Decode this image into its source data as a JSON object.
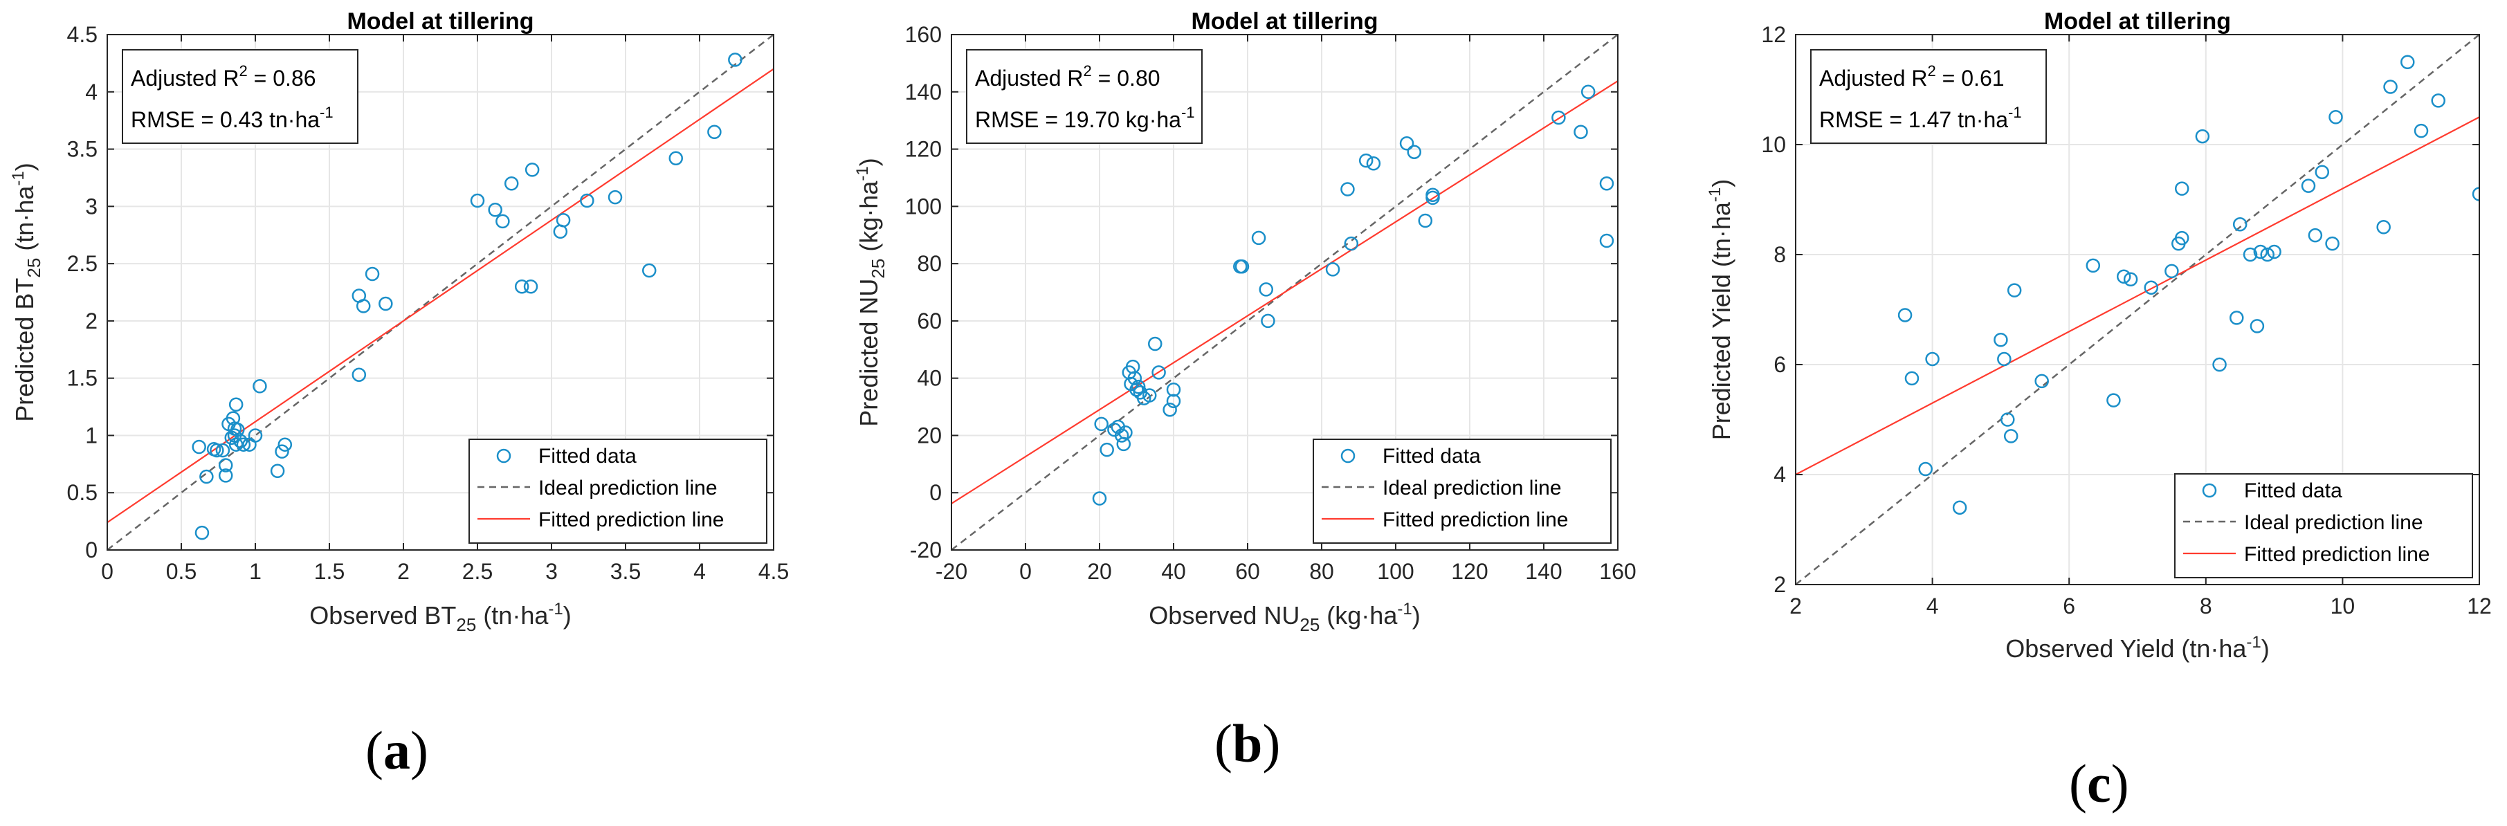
{
  "chart_data": [
    {
      "type": "scatter",
      "title": "Model at tillering",
      "xlabel": "Observed BT",
      "xlabel_sub": "25",
      "xlabel_unit": "(tn·ha",
      "xlabel_exp": "-1",
      "xlabel_close": ")",
      "ylabel": "Predicted BT",
      "ylabel_sub": "25",
      "ylabel_unit": "(tn·ha",
      "ylabel_exp": "-1",
      "ylabel_close": ")",
      "xlim": [
        0,
        4.5
      ],
      "ylim": [
        0,
        4.5
      ],
      "xticks": [
        0,
        0.5,
        1,
        1.5,
        2,
        2.5,
        3,
        3.5,
        4,
        4.5
      ],
      "yticks": [
        0,
        0.5,
        1,
        1.5,
        2,
        2.5,
        3,
        3.5,
        4,
        4.5
      ],
      "stats": {
        "r2_label": "Adjusted R",
        "r2_exp": "2",
        "r2_value": " = 0.86",
        "rmse_label": "RMSE = 0.43 tn·ha",
        "rmse_exp": "-1"
      },
      "legend": [
        "Fitted data",
        "Ideal prediction line",
        "Fitted prediction line"
      ],
      "fit": {
        "slope": 0.88,
        "intercept": 0.24
      },
      "points": [
        [
          0.62,
          0.9
        ],
        [
          0.64,
          0.15
        ],
        [
          0.67,
          0.64
        ],
        [
          0.72,
          0.88
        ],
        [
          0.74,
          0.87
        ],
        [
          0.78,
          0.87
        ],
        [
          0.8,
          0.74
        ],
        [
          0.8,
          0.65
        ],
        [
          0.82,
          1.1
        ],
        [
          0.84,
          0.98
        ],
        [
          0.85,
          1.15
        ],
        [
          0.86,
          1.06
        ],
        [
          0.86,
          1.0
        ],
        [
          0.87,
          1.27
        ],
        [
          0.87,
          0.92
        ],
        [
          0.88,
          1.05
        ],
        [
          0.9,
          0.95
        ],
        [
          0.92,
          0.92
        ],
        [
          0.96,
          0.92
        ],
        [
          1.0,
          1.0
        ],
        [
          1.03,
          1.43
        ],
        [
          1.15,
          0.69
        ],
        [
          1.18,
          0.86
        ],
        [
          1.2,
          0.92
        ],
        [
          1.7,
          1.53
        ],
        [
          1.7,
          2.22
        ],
        [
          1.73,
          2.13
        ],
        [
          1.79,
          2.41
        ],
        [
          1.88,
          2.15
        ],
        [
          2.5,
          3.05
        ],
        [
          2.62,
          2.97
        ],
        [
          2.67,
          2.87
        ],
        [
          2.73,
          3.2
        ],
        [
          2.8,
          2.3
        ],
        [
          2.86,
          2.3
        ],
        [
          2.87,
          3.32
        ],
        [
          3.06,
          2.78
        ],
        [
          3.08,
          2.88
        ],
        [
          3.24,
          3.05
        ],
        [
          3.43,
          3.08
        ],
        [
          3.66,
          2.44
        ],
        [
          3.84,
          3.42
        ],
        [
          4.1,
          3.65
        ],
        [
          4.24,
          4.28
        ]
      ]
    },
    {
      "type": "scatter",
      "title": "Model at tillering",
      "xlabel": "Observed NU",
      "xlabel_sub": "25",
      "xlabel_unit": "(kg·ha",
      "xlabel_exp": "-1",
      "xlabel_close": ")",
      "ylabel": "Predicted NU",
      "ylabel_sub": "25",
      "ylabel_unit": "(kg·ha",
      "ylabel_exp": "-1",
      "ylabel_close": ")",
      "xlim": [
        -20,
        160
      ],
      "ylim": [
        -20,
        160
      ],
      "xticks": [
        -20,
        0,
        20,
        40,
        60,
        80,
        100,
        120,
        140,
        160
      ],
      "yticks": [
        -20,
        0,
        20,
        40,
        60,
        80,
        100,
        120,
        140,
        160
      ],
      "stats": {
        "r2_label": "Adjusted R",
        "r2_exp": "2",
        "r2_value": " = 0.80",
        "rmse_label": "RMSE = 19.70 kg·ha",
        "rmse_exp": "-1"
      },
      "legend": [
        "Fitted data",
        "Ideal prediction line",
        "Fitted prediction line"
      ],
      "fit": {
        "slope": 0.82,
        "intercept": 12.6
      },
      "points": [
        [
          20,
          -2
        ],
        [
          20.5,
          24
        ],
        [
          22,
          15
        ],
        [
          24,
          22
        ],
        [
          25,
          23
        ],
        [
          26,
          20
        ],
        [
          26.5,
          17
        ],
        [
          27,
          21
        ],
        [
          28,
          42
        ],
        [
          28.5,
          38
        ],
        [
          29,
          44
        ],
        [
          29.5,
          40
        ],
        [
          30,
          36
        ],
        [
          30.5,
          37
        ],
        [
          31,
          35
        ],
        [
          32,
          33
        ],
        [
          33.5,
          34
        ],
        [
          35,
          52
        ],
        [
          36,
          42
        ],
        [
          39,
          29
        ],
        [
          40,
          32
        ],
        [
          40,
          36
        ],
        [
          58,
          79
        ],
        [
          58.5,
          79
        ],
        [
          63,
          89
        ],
        [
          65,
          71
        ],
        [
          65.5,
          60
        ],
        [
          83,
          78
        ],
        [
          87,
          106
        ],
        [
          88,
          87
        ],
        [
          92,
          116
        ],
        [
          94,
          115
        ],
        [
          103,
          122
        ],
        [
          105,
          119
        ],
        [
          108,
          95
        ],
        [
          110,
          103
        ],
        [
          110,
          104
        ],
        [
          144,
          131
        ],
        [
          150,
          126
        ],
        [
          152,
          140
        ],
        [
          157,
          108
        ],
        [
          157,
          88
        ]
      ]
    },
    {
      "type": "scatter",
      "title": "Model at tillering",
      "xlabel": "Observed Yield",
      "xlabel_sub": "",
      "xlabel_unit": "(tn·ha",
      "xlabel_exp": "-1",
      "xlabel_close": ")",
      "ylabel": "Predicted Yield",
      "ylabel_sub": "",
      "ylabel_unit": "(tn·ha",
      "ylabel_exp": "-1",
      "ylabel_close": ")",
      "xlim": [
        2,
        12
      ],
      "ylim": [
        2,
        12
      ],
      "xticks": [
        2,
        4,
        6,
        8,
        10,
        12
      ],
      "yticks": [
        2,
        4,
        6,
        8,
        10,
        12
      ],
      "stats": {
        "r2_label": "Adjusted R",
        "r2_exp": "2",
        "r2_value": " = 0.61",
        "rmse_label": "RMSE = 1.47 tn·ha",
        "rmse_exp": "-1"
      },
      "legend": [
        "Fitted data",
        "Ideal prediction line",
        "Fitted prediction line"
      ],
      "fit": {
        "slope": 0.65,
        "intercept": 2.7
      },
      "points": [
        [
          3.6,
          6.9
        ],
        [
          3.7,
          5.75
        ],
        [
          3.9,
          4.1
        ],
        [
          4.0,
          6.1
        ],
        [
          4.4,
          3.4
        ],
        [
          5.0,
          6.45
        ],
        [
          5.05,
          6.1
        ],
        [
          5.1,
          5.0
        ],
        [
          5.15,
          4.7
        ],
        [
          5.2,
          7.35
        ],
        [
          5.6,
          5.7
        ],
        [
          6.35,
          7.8
        ],
        [
          6.65,
          5.35
        ],
        [
          6.8,
          7.6
        ],
        [
          6.9,
          7.55
        ],
        [
          7.2,
          7.4
        ],
        [
          7.5,
          7.7
        ],
        [
          7.6,
          8.2
        ],
        [
          7.65,
          8.3
        ],
        [
          7.65,
          9.2
        ],
        [
          7.95,
          10.15
        ],
        [
          8.2,
          6.0
        ],
        [
          8.45,
          6.85
        ],
        [
          8.5,
          8.55
        ],
        [
          8.65,
          8.0
        ],
        [
          8.75,
          6.7
        ],
        [
          8.8,
          8.05
        ],
        [
          8.9,
          8.0
        ],
        [
          9.0,
          8.05
        ],
        [
          9.5,
          9.25
        ],
        [
          9.6,
          8.35
        ],
        [
          9.7,
          9.5
        ],
        [
          9.85,
          8.2
        ],
        [
          9.9,
          10.5
        ],
        [
          10.6,
          8.5
        ],
        [
          10.7,
          11.05
        ],
        [
          10.95,
          11.5
        ],
        [
          11.15,
          10.25
        ],
        [
          11.4,
          10.8
        ],
        [
          12.0,
          9.1
        ]
      ]
    }
  ],
  "captions": [
    "a",
    "b",
    "c"
  ]
}
